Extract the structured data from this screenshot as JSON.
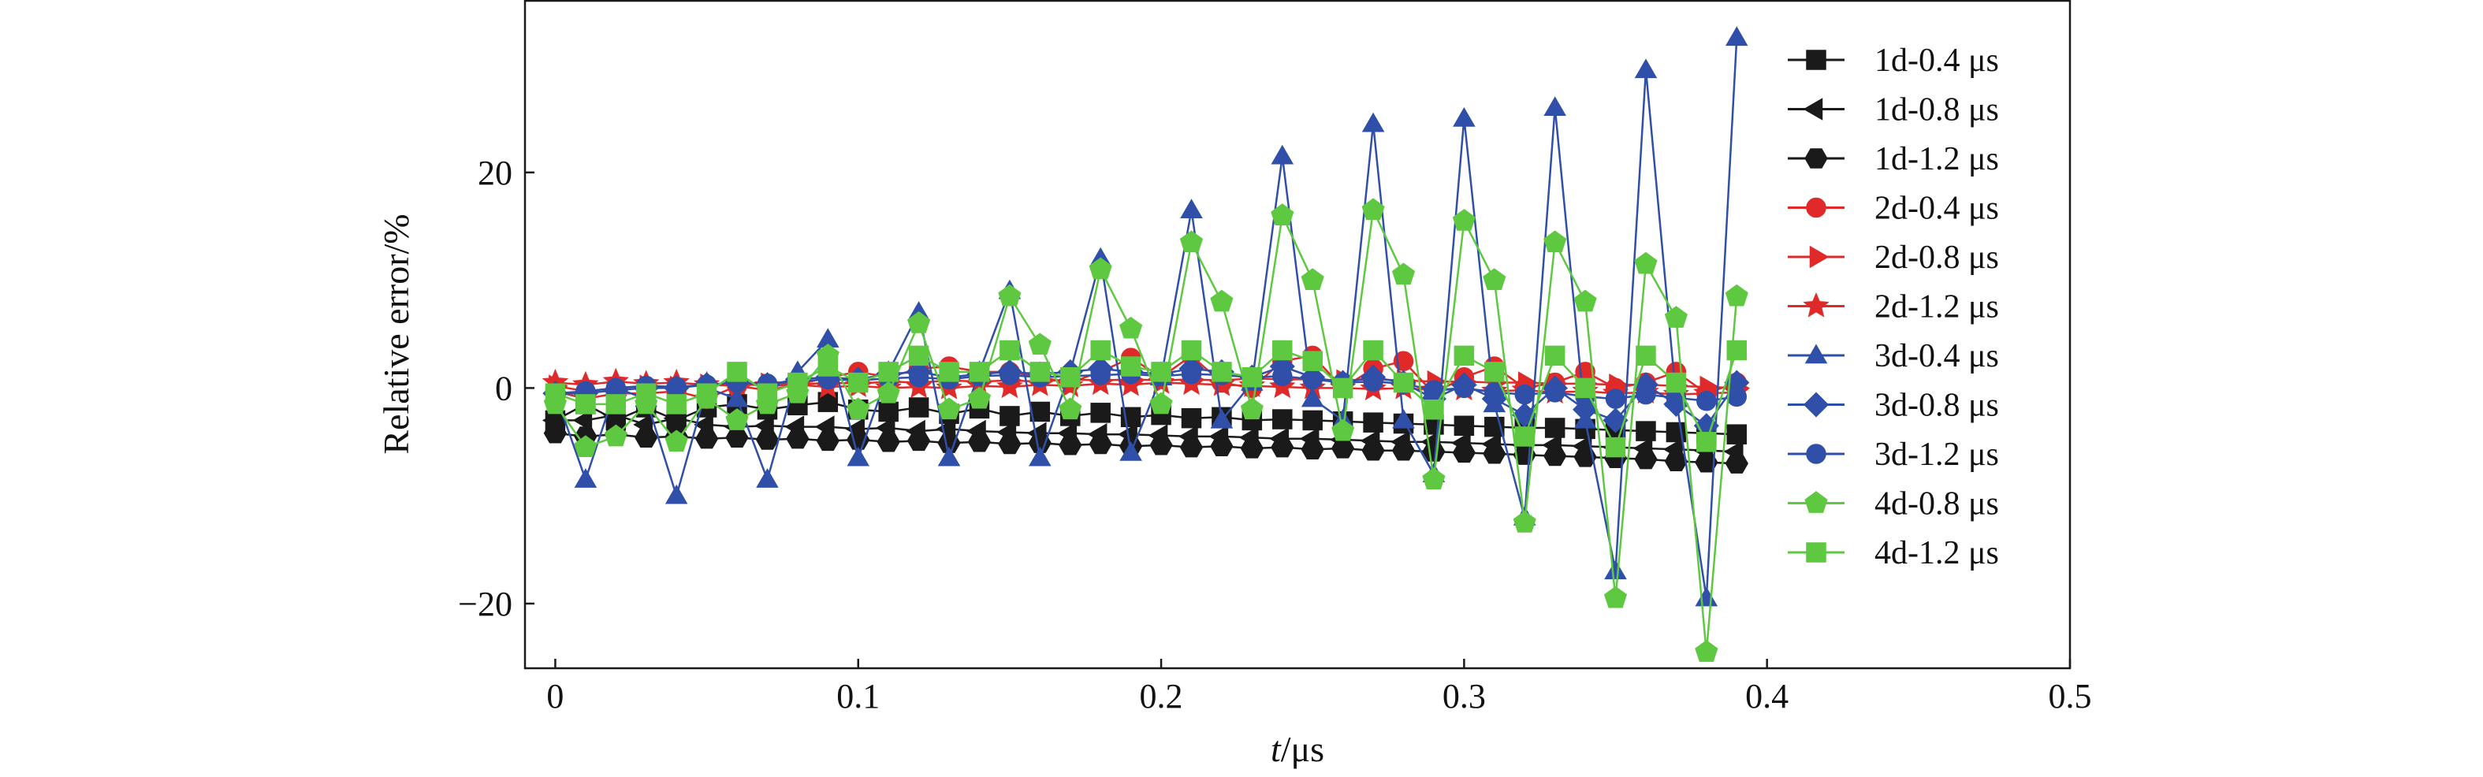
{
  "chart_data": {
    "type": "line",
    "xlabel_italic": "t",
    "xlabel_rest": "/μs",
    "ylabel": "Relative error/%",
    "xlim": [
      -0.01,
      0.5
    ],
    "ylim": [
      -26,
      36
    ],
    "x_ticks": [
      0,
      0.1,
      0.2,
      0.3,
      0.4,
      0.5
    ],
    "x_tick_labels": [
      "0",
      "0.1",
      "0.2",
      "0.3",
      "0.4",
      "0.5"
    ],
    "y_ticks": [
      -20,
      0,
      20
    ],
    "y_tick_labels": [
      "−20",
      "0",
      "20"
    ],
    "legend_position": "right",
    "x": [
      0,
      0.01,
      0.02,
      0.03,
      0.04,
      0.05,
      0.06,
      0.07,
      0.08,
      0.09,
      0.1,
      0.11,
      0.12,
      0.13,
      0.14,
      0.15,
      0.16,
      0.17,
      0.18,
      0.19,
      0.2,
      0.21,
      0.22,
      0.23,
      0.24,
      0.25,
      0.26,
      0.27,
      0.28,
      0.29,
      0.3,
      0.31,
      0.32,
      0.33,
      0.34,
      0.35,
      0.36,
      0.37,
      0.38,
      0.39
    ],
    "series": [
      {
        "name": "1d-0.4 μs",
        "color": "#1a1a1a",
        "marker": "square",
        "values": [
          -3,
          -1.5,
          -3,
          -1.8,
          -3,
          -1.8,
          -1.5,
          -2,
          -1.6,
          -1.3,
          -2,
          -2.2,
          -1.8,
          -2.4,
          -1.9,
          -2.6,
          -2.2,
          -2.6,
          -2.3,
          -2.7,
          -2.5,
          -2.8,
          -2.7,
          -3,
          -2.9,
          -3,
          -3.1,
          -3.2,
          -3.3,
          -3.4,
          -3.5,
          -3.6,
          -3.7,
          -3.7,
          -3.8,
          -3.9,
          -4,
          -4.1,
          -4.2,
          -4.3
        ]
      },
      {
        "name": "1d-0.8 μs",
        "color": "#1a1a1a",
        "marker": "tri-left",
        "values": [
          -3,
          -3,
          -2.5,
          -3.4,
          -2.8,
          -3.4,
          -3.6,
          -3.5,
          -3.6,
          -3.6,
          -3.8,
          -3.7,
          -4,
          -3.8,
          -4,
          -4.1,
          -4.2,
          -4.2,
          -4.3,
          -4.3,
          -4.4,
          -4.5,
          -4.5,
          -4.6,
          -4.7,
          -4.7,
          -4.8,
          -4.9,
          -5,
          -5,
          -5.1,
          -5.2,
          -5.3,
          -5.3,
          -5.4,
          -5.5,
          -5.6,
          -5.7,
          -5.8,
          -5.9
        ]
      },
      {
        "name": "1d-1.2 μs",
        "color": "#1a1a1a",
        "marker": "hexagon",
        "values": [
          -4.2,
          -4.5,
          -4.3,
          -4.6,
          -4.5,
          -4.7,
          -4.6,
          -4.8,
          -4.7,
          -4.9,
          -4.8,
          -5,
          -4.9,
          -5.1,
          -5,
          -5.2,
          -5.1,
          -5.3,
          -5.2,
          -5.4,
          -5.3,
          -5.5,
          -5.4,
          -5.6,
          -5.5,
          -5.7,
          -5.6,
          -5.8,
          -5.8,
          -5.9,
          -6,
          -6.1,
          -6.2,
          -6.3,
          -6.4,
          -6.5,
          -6.6,
          -6.8,
          -6.9,
          -7
        ]
      },
      {
        "name": "2d-0.4 μs",
        "color": "#e02a2a",
        "marker": "circle",
        "values": [
          -0.3,
          -1,
          -0.5,
          -0.5,
          -0.3,
          -1,
          0.2,
          -0.2,
          0.3,
          1,
          1.5,
          1,
          1.8,
          2,
          1.5,
          1.5,
          1,
          0.5,
          1.5,
          2.8,
          1,
          3,
          0.5,
          0,
          2.5,
          3,
          0,
          1.8,
          2.5,
          -0.5,
          1,
          2,
          0,
          0.5,
          1.5,
          0,
          0.5,
          1.5,
          -0.5,
          0.5
        ]
      },
      {
        "name": "2d-0.8 μs",
        "color": "#e02a2a",
        "marker": "tri-right",
        "values": [
          0.2,
          -0.3,
          0,
          0.2,
          0.1,
          0.3,
          0.2,
          0.4,
          0.3,
          0.5,
          0.4,
          0.6,
          0.5,
          0.7,
          0.6,
          0.7,
          0.6,
          0.8,
          0.7,
          0.8,
          0.7,
          0.8,
          0.7,
          0.9,
          0.8,
          0.8,
          0.7,
          0.8,
          0.7,
          0.6,
          0.6,
          0.5,
          0.5,
          0.4,
          0.4,
          0.3,
          0.3,
          0.2,
          0.1,
          0
        ]
      },
      {
        "name": "2d-1.2 μs",
        "color": "#e02a2a",
        "marker": "star",
        "values": [
          0.5,
          0.3,
          0.6,
          0.4,
          0.5,
          0.3,
          0.4,
          0.2,
          0.3,
          0.1,
          0.2,
          0,
          0.1,
          0,
          0.2,
          0.1,
          0.3,
          0.2,
          0.4,
          0.3,
          0.5,
          0.4,
          0.3,
          0.2,
          0.1,
          0,
          0,
          -0.1,
          0,
          -0.2,
          -0.1,
          -0.3,
          -0.2,
          -0.4,
          -0.3,
          -0.5,
          -0.4,
          -0.6,
          -0.5,
          -0.4
        ]
      },
      {
        "name": "3d-0.4 μs",
        "color": "#2f4fa8",
        "marker": "triangle",
        "values": [
          -0.5,
          -8.5,
          0,
          -1,
          -10,
          0,
          -1,
          -8.5,
          1.5,
          4.5,
          -6.5,
          1.5,
          7,
          -6.5,
          1.5,
          9,
          -6.5,
          1.5,
          12,
          -6,
          1,
          16.5,
          -3,
          0.5,
          21.5,
          -1,
          -3,
          24.5,
          -3,
          -8,
          25,
          -1.5,
          -12,
          26,
          -3,
          -17,
          29.5,
          -1,
          -19.5,
          32.5
        ]
      },
      {
        "name": "3d-0.8 μs",
        "color": "#2f4fa8",
        "marker": "diamond",
        "values": [
          -0.5,
          -0.5,
          -0.2,
          0,
          0,
          0.3,
          0.5,
          0.3,
          0.8,
          1,
          0.8,
          1.3,
          1.5,
          1,
          1.3,
          1.5,
          1.3,
          1.5,
          1.8,
          1.5,
          1.3,
          1.8,
          1.5,
          1,
          2,
          1,
          0.5,
          1,
          0.5,
          -1,
          0.3,
          -1,
          -2.5,
          0,
          -2,
          -3,
          0.3,
          -1.5,
          -3.5,
          0.5
        ]
      },
      {
        "name": "3d-1.2 μs",
        "color": "#2f4fa8",
        "marker": "circle",
        "values": [
          -0.5,
          -0.3,
          0,
          0.2,
          0.1,
          0.3,
          0.5,
          0.4,
          0.6,
          0.8,
          0.7,
          0.9,
          1,
          0.8,
          1.1,
          1.2,
          1,
          1.1,
          1.2,
          1.3,
          1.1,
          1.3,
          1.2,
          1,
          1.1,
          0.8,
          0.5,
          0.6,
          0.4,
          -0.2,
          0,
          -0.4,
          -0.6,
          -0.4,
          -0.8,
          -1,
          -0.6,
          -0.9,
          -1.2,
          -0.8
        ]
      },
      {
        "name": "4d-0.8 μs",
        "color": "#5ec940",
        "marker": "pentagon",
        "values": [
          -1.5,
          -5.5,
          -4.5,
          -1.5,
          -5,
          -1,
          -3,
          -1.5,
          -0.5,
          3,
          -2,
          -0.5,
          6,
          -2,
          -1,
          8.5,
          4,
          -2,
          11,
          5.5,
          -1.5,
          13.5,
          8,
          -2,
          16,
          10,
          -4,
          16.5,
          10.5,
          -8.5,
          15.5,
          10,
          -12.5,
          13.5,
          8,
          -19.5,
          11.5,
          6.5,
          -24.5,
          8.5
        ]
      },
      {
        "name": "4d-1.2 μs",
        "color": "#5ec940",
        "marker": "square",
        "values": [
          -0.5,
          -1.5,
          -1.5,
          -0.5,
          -1.5,
          -0.5,
          1.5,
          -0.5,
          0.5,
          2,
          0.5,
          1.5,
          3,
          1.5,
          1.5,
          3.5,
          1.5,
          1,
          3.5,
          2,
          1.5,
          3.5,
          1.5,
          1,
          3.5,
          2.5,
          0,
          3.5,
          0.5,
          -2,
          3,
          1.5,
          -4.5,
          3,
          0,
          -5.5,
          3,
          0.5,
          -5,
          3.5
        ]
      }
    ]
  }
}
